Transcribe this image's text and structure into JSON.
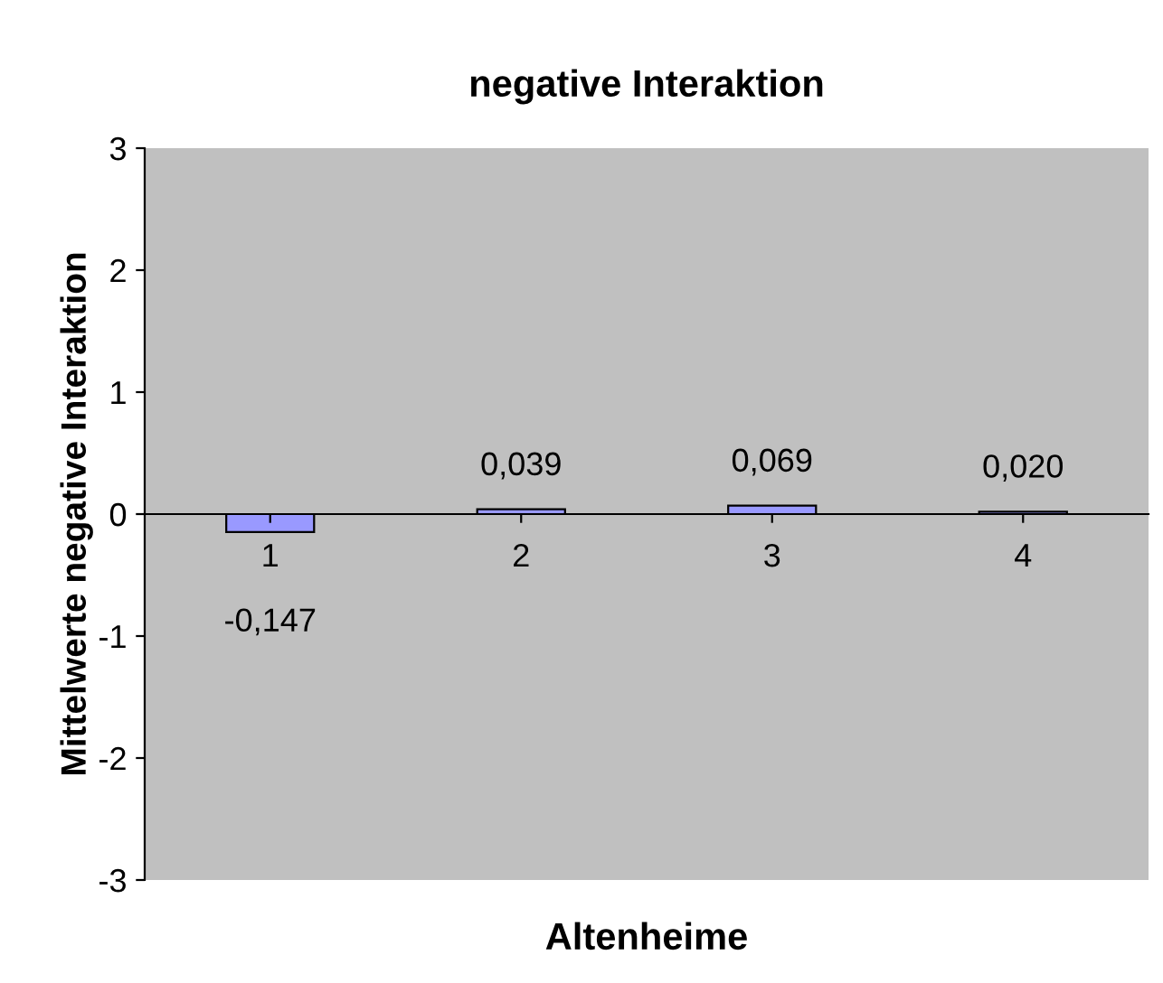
{
  "chart_data": {
    "type": "bar",
    "title": "negative Interaktion",
    "xlabel": "Altenheime",
    "ylabel": "Mittelwerte negative Interaktion",
    "categories": [
      "1",
      "2",
      "3",
      "4"
    ],
    "values": [
      -0.147,
      0.039,
      0.069,
      0.02
    ],
    "value_labels": [
      "-0,147",
      "0,039",
      "0,069",
      "0,020"
    ],
    "color": "#9999ff",
    "ylim": [
      -3,
      3
    ],
    "yticks": [
      -3,
      -2,
      -1,
      0,
      1,
      2,
      3
    ],
    "grid": false,
    "legend": false
  }
}
